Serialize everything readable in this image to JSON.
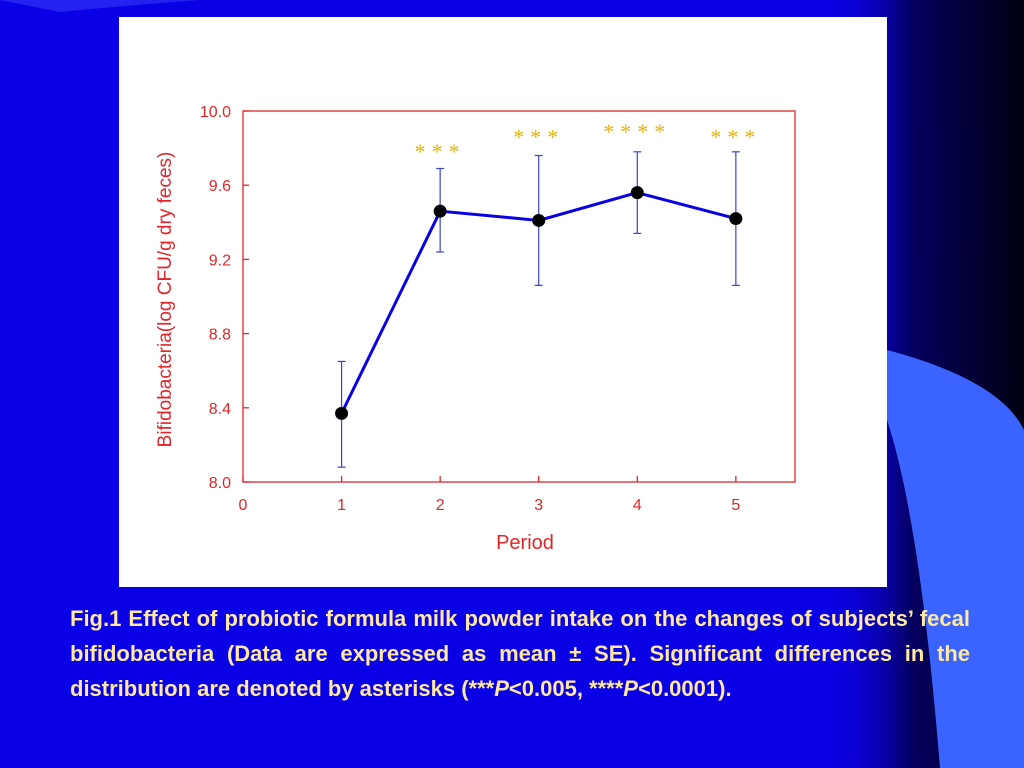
{
  "colors": {
    "background": "#0a00e6",
    "axis": "#e0262a",
    "series_line": "#0a00e6",
    "marker": "#000000",
    "error_bar": "#3b43c9",
    "significance": "#e6b400",
    "caption_text": "#ffe9a0"
  },
  "caption": {
    "part1": "Fig.1 Effect of probiotic formula milk powder intake on the changes of subjects’ fecal bifidobacteria (Data are expressed as mean ± SE). Significant differences in the distribution are denoted by asterisks (***",
    "p1": "P",
    "part2": "<0.005, ****",
    "p2": "P",
    "part3": "<0.0001)."
  },
  "chart_data": {
    "type": "line",
    "xlabel": "Period",
    "ylabel": "Bifidobacteria(log CFU/g dry feces)",
    "xlim": [
      0,
      5.6
    ],
    "ylim": [
      8.0,
      10.0
    ],
    "x_ticks": [
      "0",
      "1",
      "2",
      "3",
      "4",
      "5"
    ],
    "y_ticks": [
      "8.0",
      "8.4",
      "8.8",
      "9.2",
      "9.6",
      "10.0"
    ],
    "grid": false,
    "series": [
      {
        "x": [
          1,
          2,
          3,
          4,
          5
        ],
        "y": [
          8.37,
          9.46,
          9.41,
          9.56,
          9.42
        ],
        "err_upper": [
          8.65,
          9.69,
          9.76,
          9.78,
          9.78
        ],
        "err_lower": [
          8.08,
          9.24,
          9.06,
          9.34,
          9.06
        ]
      }
    ],
    "annotations": [
      {
        "x": 2,
        "text": "***",
        "y": 9.74
      },
      {
        "x": 3,
        "text": "***",
        "y": 9.82
      },
      {
        "x": 4,
        "text": "****",
        "y": 9.85
      },
      {
        "x": 5,
        "text": "***",
        "y": 9.82
      }
    ]
  }
}
